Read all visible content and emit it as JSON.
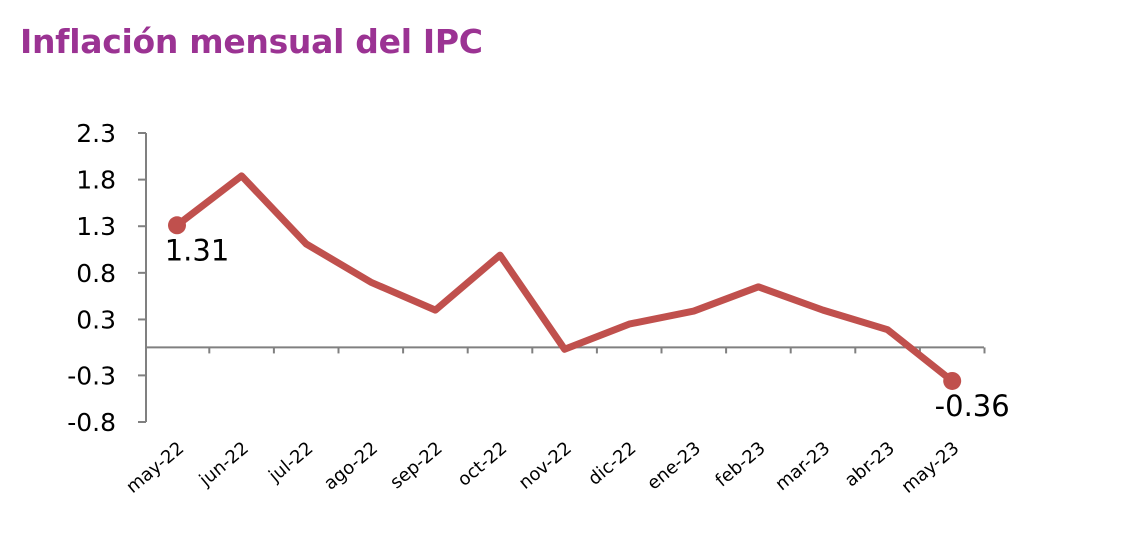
{
  "chart_data": {
    "type": "line",
    "title": "Inflación mensual del IPC",
    "xlabel": "",
    "ylabel": "",
    "categories": [
      "may-22",
      "jun-22",
      "jul-22",
      "ago-22",
      "sep-22",
      "oct-22",
      "nov-22",
      "dic-22",
      "ene-23",
      "feb-23",
      "mar-23",
      "abr-23",
      "may-23"
    ],
    "series": [
      {
        "values": [
          1.31,
          1.84,
          1.11,
          0.7,
          0.4,
          0.99,
          -0.02,
          0.25,
          0.39,
          0.65,
          0.4,
          0.19,
          -0.36
        ]
      }
    ],
    "data_labels": [
      {
        "index": 0,
        "text": "1.31",
        "position": "below"
      },
      {
        "index": 12,
        "text": "-0.36",
        "position": "below"
      }
    ],
    "y_ticks": [
      2.3,
      1.8,
      1.3,
      0.8,
      0.3,
      -0.3,
      -0.8
    ],
    "y_tick_labels": [
      "2.3",
      "1.8",
      "1.3",
      "0.8",
      "0.3",
      "-0.3",
      "-0.8"
    ],
    "ylim": [
      -0.8,
      2.3
    ],
    "grid": false,
    "legend": "none",
    "colors": {
      "title": "#9B3393",
      "line": "#C0504D",
      "axis": "#808080"
    }
  }
}
